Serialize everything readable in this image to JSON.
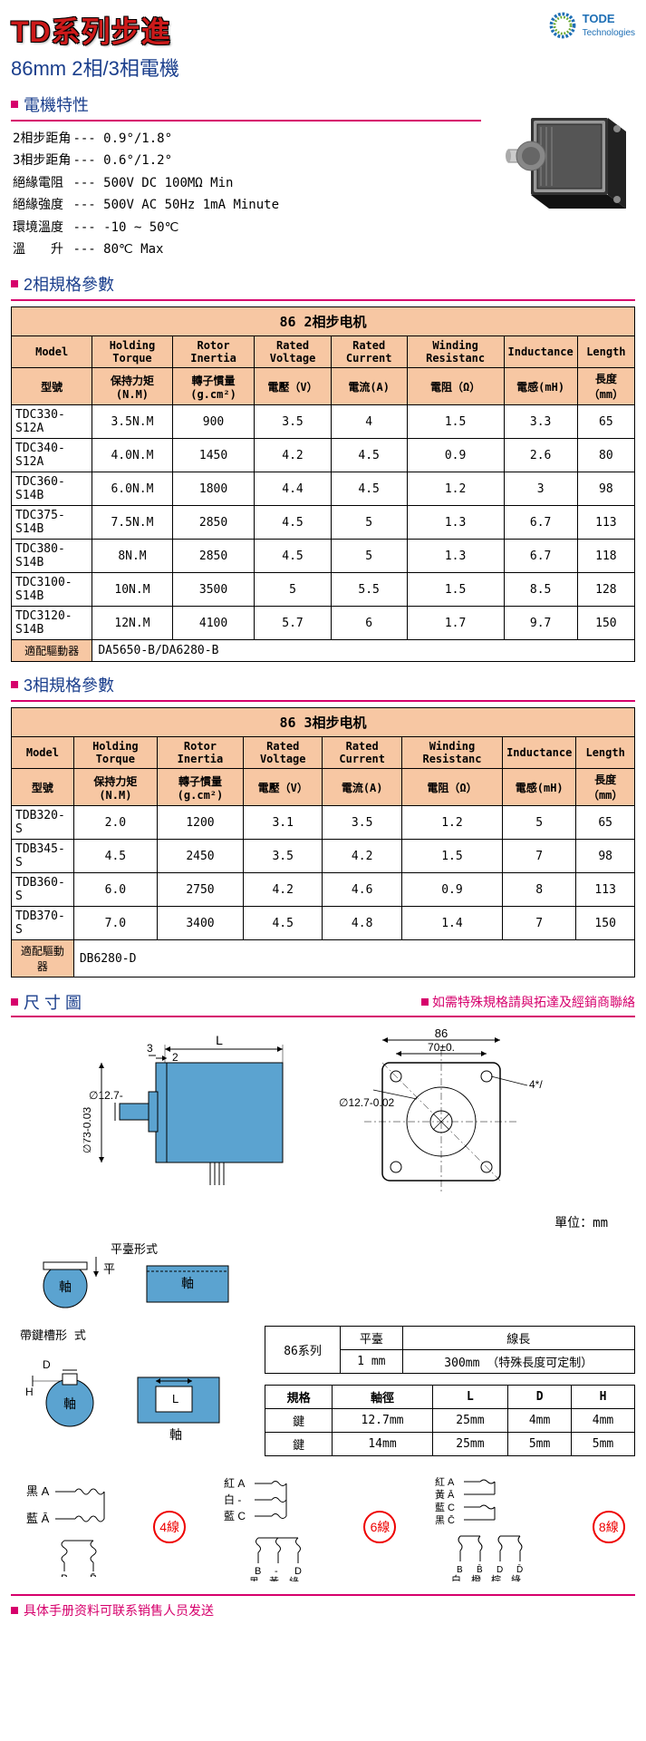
{
  "title": {
    "main": "TD系列步進",
    "sub": "86mm 2相/3相電機"
  },
  "brand": {
    "name": "TODE",
    "sub": "Technologies"
  },
  "sections": {
    "char": "電機特性",
    "p2": "2相規格參數",
    "p3": "3相規格參數",
    "dim": "尺 寸 圖"
  },
  "characteristics": [
    [
      "2相步距角",
      "--- 0.9°/1.8°"
    ],
    [
      "3相步距角",
      "--- 0.6°/1.2°"
    ],
    [
      "絕緣電阻",
      "--- 500V DC  100MΩ Min"
    ],
    [
      "絕緣強度",
      "--- 500V AC  50Hz  1mA Minute"
    ],
    [
      "環境溫度",
      "--- -10 ~ 50℃"
    ],
    [
      "溫　　升",
      "--- 80℃ Max"
    ]
  ],
  "table2": {
    "caption": "86 2相步电机",
    "headers1": [
      "Model",
      "Holding Torque",
      "Rotor Inertia",
      "Rated Voltage",
      "Rated Current",
      "Winding Resistanc",
      "Inductance",
      "Length"
    ],
    "headers2": [
      "型號",
      "保持力矩 (N.M)",
      "轉子慣量 (g.cm²)",
      "電壓（V）",
      "電流(A)",
      "電阻（Ω）",
      "電感(mH)",
      "長度（mm）"
    ],
    "rows": [
      [
        "TDC330-S12A",
        "3.5N.M",
        "900",
        "3.5",
        "4",
        "1.5",
        "3.3",
        "65"
      ],
      [
        "TDC340-S12A",
        "4.0N.M",
        "1450",
        "4.2",
        "4.5",
        "0.9",
        "2.6",
        "80"
      ],
      [
        "TDC360-S14B",
        "6.0N.M",
        "1800",
        "4.4",
        "4.5",
        "1.2",
        "3",
        "98"
      ],
      [
        "TDC375-S14B",
        "7.5N.M",
        "2850",
        "4.5",
        "5",
        "1.3",
        "6.7",
        "113"
      ],
      [
        "TDC380-S14B",
        "8N.M",
        "2850",
        "4.5",
        "5",
        "1.3",
        "6.7",
        "118"
      ],
      [
        "TDC3100-S14B",
        "10N.M",
        "3500",
        "5",
        "5.5",
        "1.5",
        "8.5",
        "128"
      ],
      [
        "TDC3120-S14B",
        "12N.M",
        "4100",
        "5.7",
        "6",
        "1.7",
        "9.7",
        "150"
      ]
    ],
    "driver_label": "適配驅動器",
    "driver_value": "DA5650-B/DA6280-B"
  },
  "table3": {
    "caption": "86 3相步电机",
    "headers1": [
      "Model",
      "Holding Torque",
      "Rotor Inertia",
      "Rated Voltage",
      "Rated Current",
      "Winding Resistanc",
      "Inductance",
      "Length"
    ],
    "headers2": [
      "型號",
      "保持力矩 (N.M)",
      "轉子慣量 (g.cm²)",
      "電壓（V）",
      "電流(A)",
      "電阻（Ω）",
      "電感(mH)",
      "長度（mm）"
    ],
    "rows": [
      [
        "TDB320-S",
        "2.0",
        "1200",
        "3.1",
        "3.5",
        "1.2",
        "5",
        "65"
      ],
      [
        "TDB345-S",
        "4.5",
        "2450",
        "3.5",
        "4.2",
        "1.5",
        "7",
        "98"
      ],
      [
        "TDB360-S",
        "6.0",
        "2750",
        "4.2",
        "4.6",
        "0.9",
        "8",
        "113"
      ],
      [
        "TDB370-S",
        "7.0",
        "3400",
        "4.5",
        "4.8",
        "1.4",
        "7",
        "150"
      ]
    ],
    "driver_label": "適配驅動器",
    "driver_value": "DB6280-D"
  },
  "notes": {
    "contact": "如需特殊規格請與拓達及經銷商聯絡",
    "unit": "單位：mm",
    "footer": "具体手册资料可联系销售人员发送"
  },
  "dim_labels": {
    "side_width": "86",
    "side_holes": "70±0.",
    "side_shaft": "∅12.7-0.02",
    "side_thread": "4*/",
    "top_L": "L",
    "top_3": "3",
    "top_2": "2",
    "top_shaft": "∅12.7-",
    "top_body": "∅73-0.03"
  },
  "flat": {
    "title": "平臺形式",
    "shaft": "軸",
    "flat": "平"
  },
  "key": {
    "title": "帶鍵槽形 式",
    "shaft": "軸",
    "D": "D",
    "H": "H",
    "L": "L"
  },
  "series_table": {
    "h1": "86系列",
    "h2": "平臺",
    "h3": "線長",
    "v1": "1 mm",
    "v2": "300mm （特殊長度可定制）"
  },
  "spec_table": {
    "headers": [
      "規格",
      "軸徑",
      "L",
      "D",
      "H"
    ],
    "rows": [
      [
        "鍵",
        "12.7mm",
        "25mm",
        "4mm",
        "4mm"
      ],
      [
        "鍵",
        "14mm",
        "25mm",
        "5mm",
        "5mm"
      ]
    ]
  },
  "wiring": {
    "w4": "4線",
    "w6": "6線",
    "w8": "8線",
    "labels": {
      "black": "黑",
      "blue": "藍",
      "white": "白",
      "yellow": "黃",
      "red": "紅",
      "orange": "橙",
      "brown": "棕",
      "green": "綠"
    }
  },
  "colors": {
    "accent_red": "#cc1a1a",
    "accent_blue": "#1a3e8c",
    "accent_pink": "#d6006c",
    "table_header": "#f7c7a3",
    "logo_blue": "#1e6fb5",
    "logo_green": "#6aa82f",
    "diagram_blue": "#5ba3d0",
    "diagram_dark": "#4a6278",
    "wire_red": "#e00000"
  }
}
